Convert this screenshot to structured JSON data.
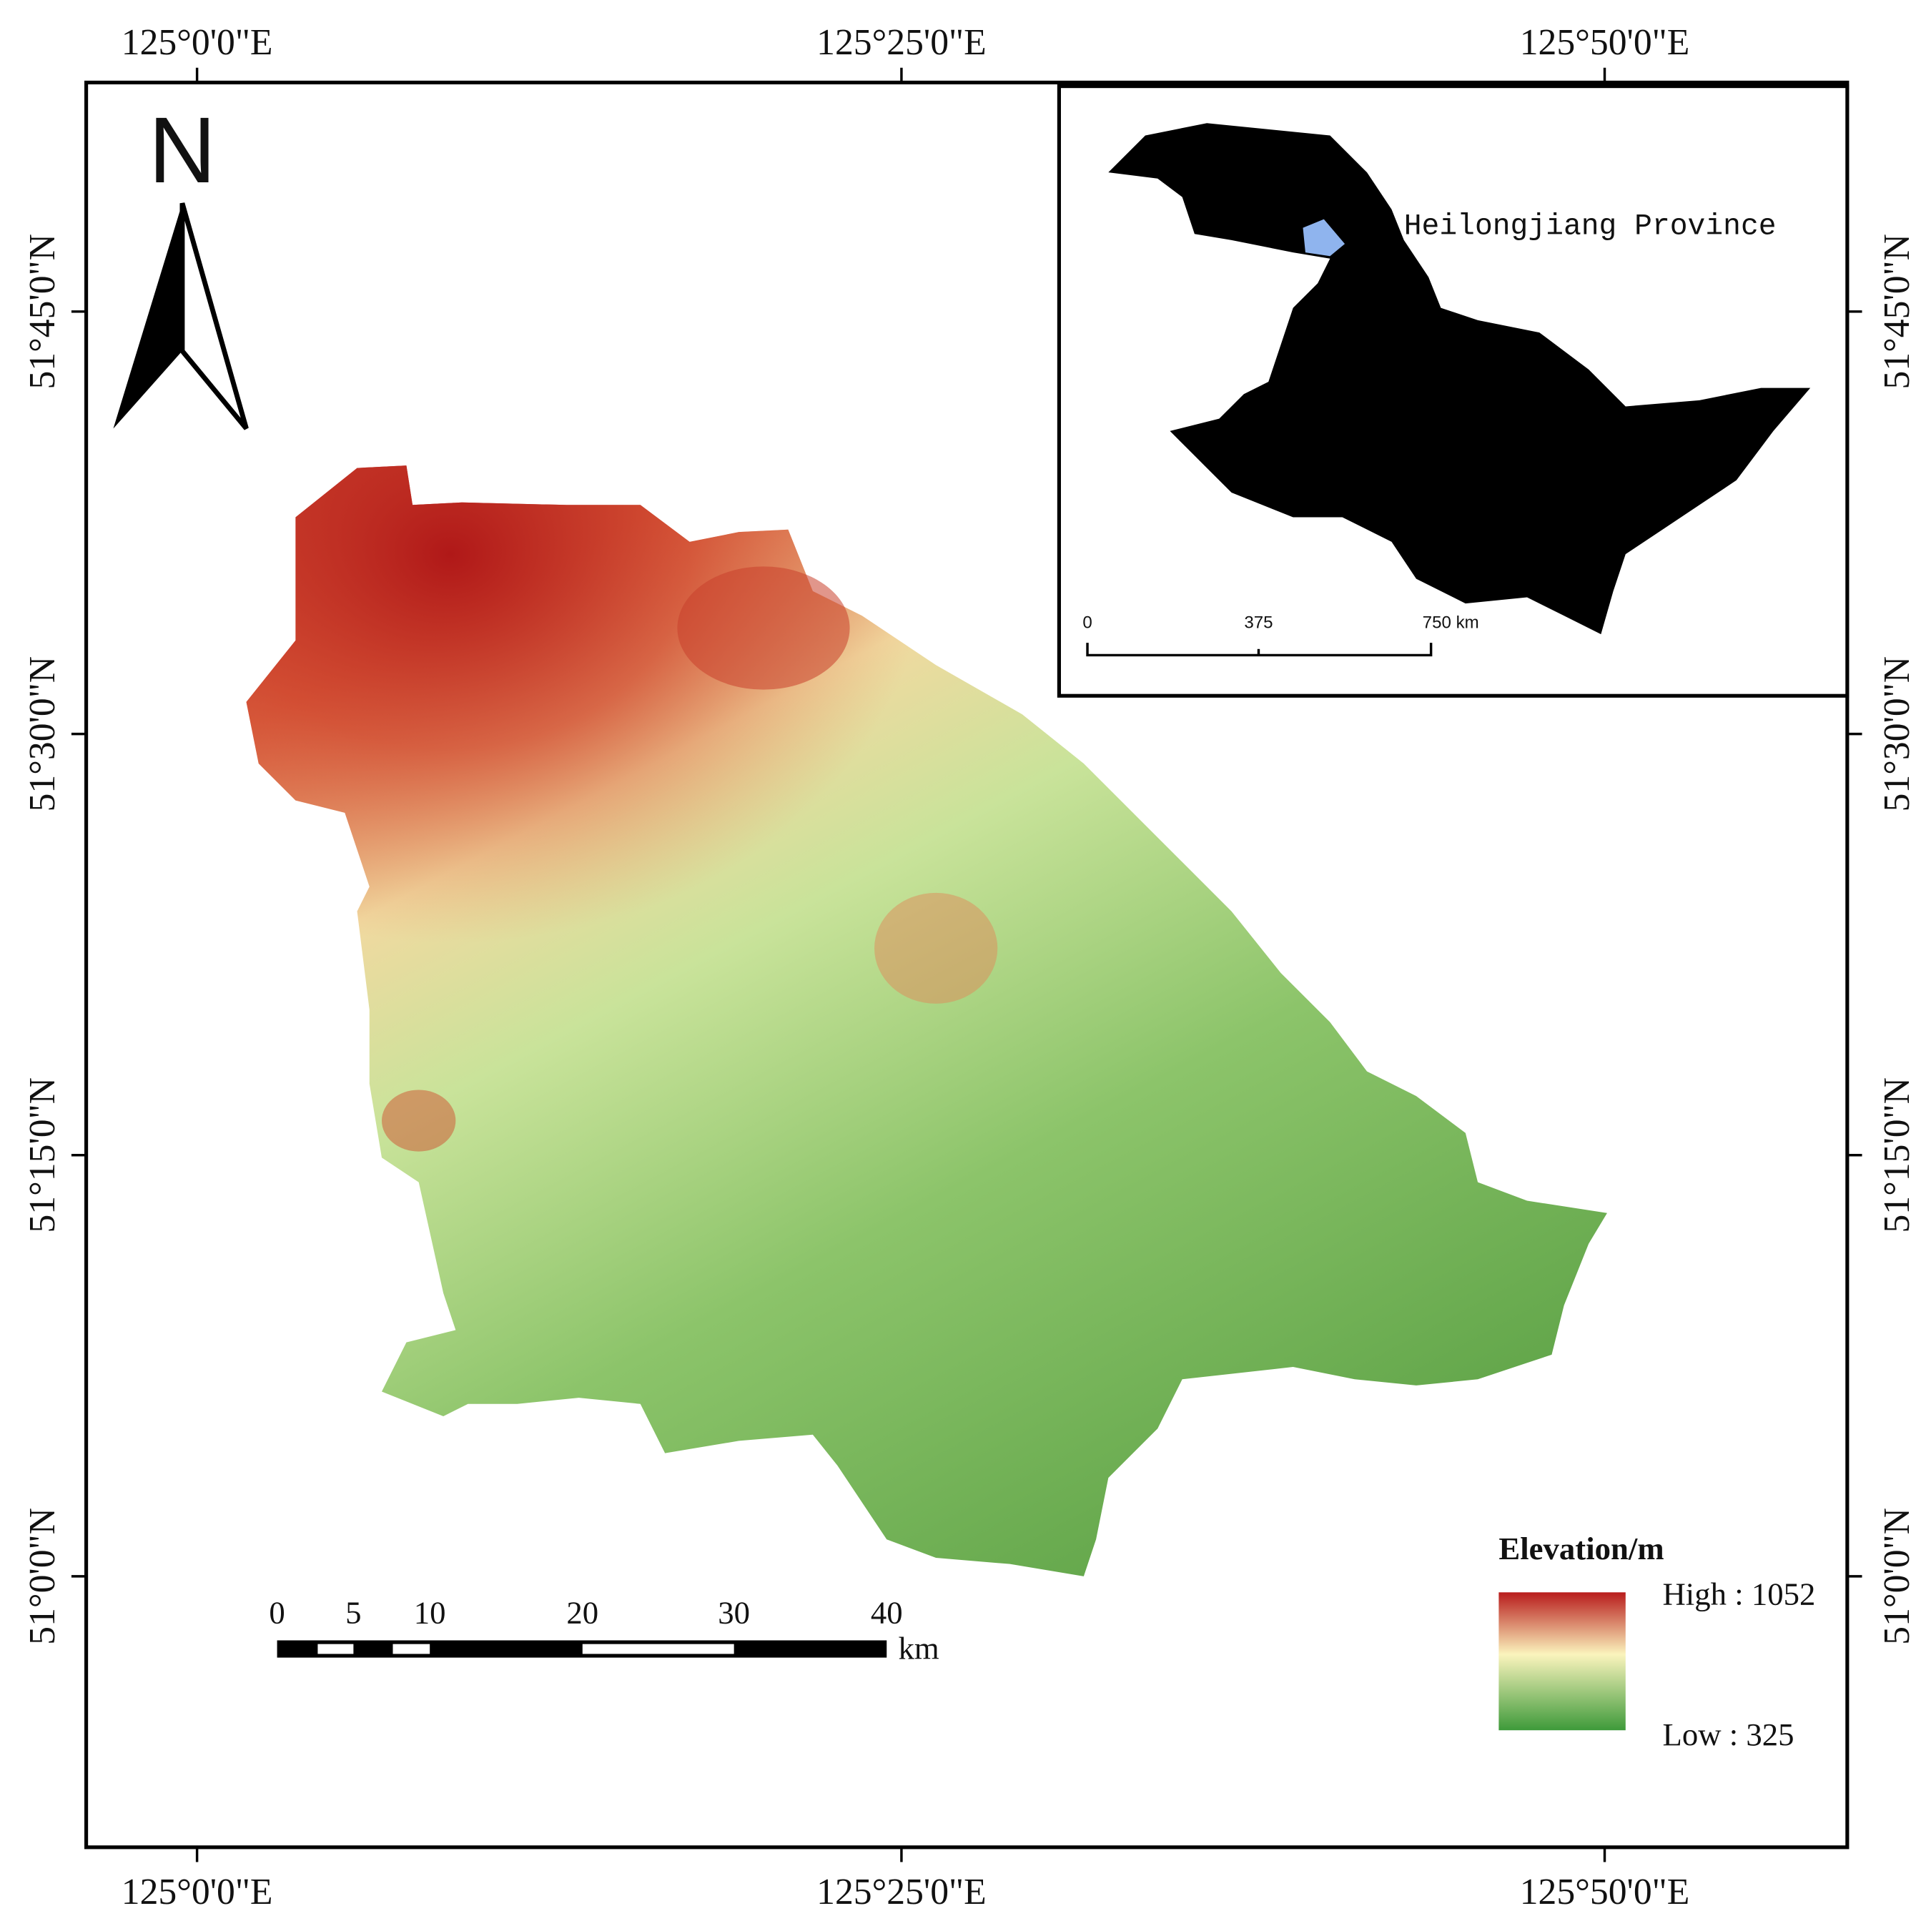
{
  "map": {
    "longitude_labels": [
      "125°0'0\"E",
      "125°25'0\"E",
      "125°50'0\"E"
    ],
    "latitude_labels": [
      "51°45'0\"N",
      "51°30'0\"N",
      "51°15'0\"N",
      "51°0'0\"N"
    ],
    "north_arrow": "N",
    "inset": {
      "label": "Heilongjiang Province",
      "scale_labels": [
        "0",
        "375",
        "750 km"
      ]
    },
    "scale_bar": {
      "labels": [
        "0",
        "5",
        "10",
        "20",
        "30",
        "40"
      ],
      "unit": "km"
    },
    "legend": {
      "title": "Elevation/m",
      "high": "High : 1052",
      "low": "Low : 325"
    }
  }
}
